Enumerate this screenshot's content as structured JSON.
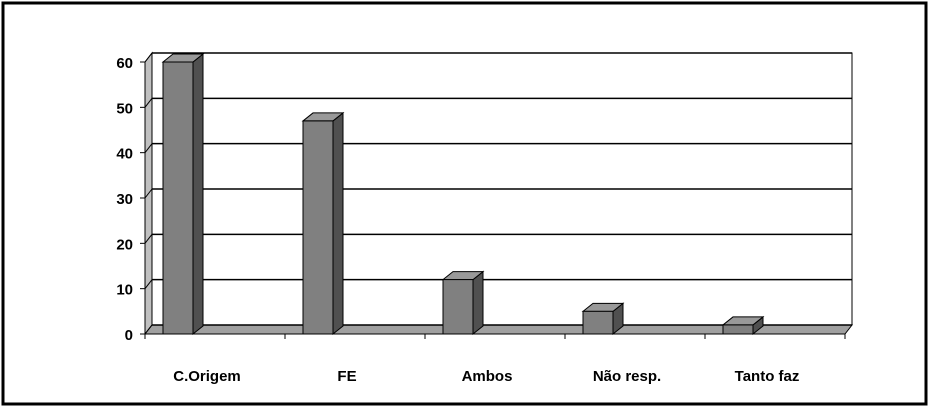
{
  "chart_data": {
    "type": "bar3d",
    "categories": [
      "C.Origem",
      "FE",
      "Ambos",
      "Não resp.",
      "Tanto faz"
    ],
    "values": [
      60,
      47,
      12,
      5,
      2
    ],
    "color": "#808080",
    "ylim": [
      0,
      60
    ],
    "yticks": [
      0,
      10,
      20,
      30,
      40,
      50,
      60
    ],
    "grid": true
  }
}
